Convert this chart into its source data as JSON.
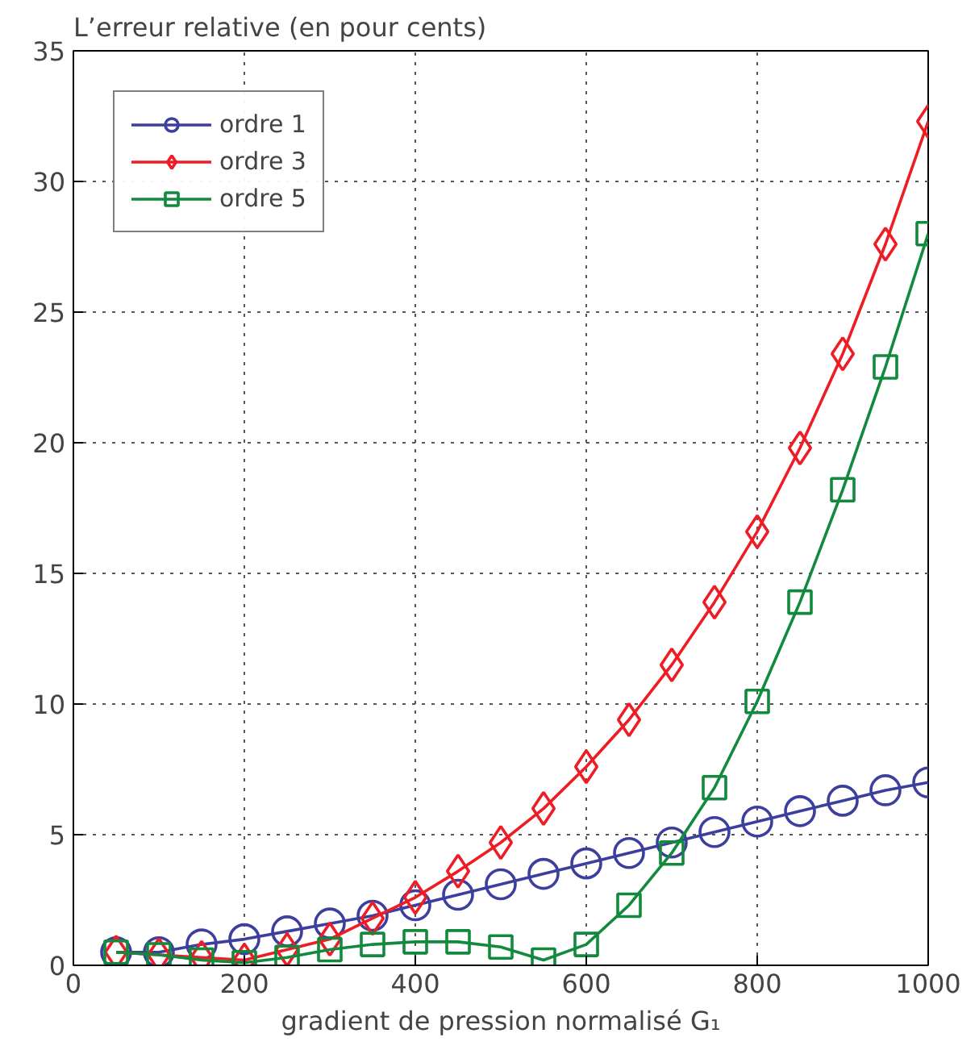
{
  "chart_data": {
    "type": "line",
    "title": "L’erreur relative  (en pour cents)",
    "xlabel": "gradient de pression normalisé G₁",
    "x": [
      50,
      100,
      150,
      200,
      250,
      300,
      350,
      400,
      450,
      500,
      550,
      600,
      650,
      700,
      750,
      800,
      850,
      900,
      950,
      1000
    ],
    "series": [
      {
        "name": "ordre 1",
        "color": "#3c3f9e",
        "marker": "circle",
        "values": [
          0.5,
          0.5,
          0.8,
          1.0,
          1.3,
          1.6,
          1.9,
          2.3,
          2.7,
          3.1,
          3.5,
          3.9,
          4.3,
          4.7,
          5.1,
          5.5,
          5.9,
          6.3,
          6.7,
          7.0
        ]
      },
      {
        "name": "ordre 3",
        "color": "#ee1c24",
        "marker": "diamond",
        "values": [
          0.5,
          0.4,
          0.3,
          0.2,
          0.6,
          1.0,
          1.8,
          2.6,
          3.6,
          4.7,
          6.0,
          7.6,
          9.4,
          11.5,
          13.9,
          16.6,
          19.8,
          23.4,
          27.6,
          32.3
        ]
      },
      {
        "name": "ordre 5",
        "color": "#128a3e",
        "marker": "square",
        "values": [
          0.5,
          0.4,
          0.2,
          0.1,
          0.3,
          0.6,
          0.8,
          0.9,
          0.9,
          0.7,
          0.2,
          0.8,
          2.3,
          4.3,
          6.8,
          10.1,
          13.9,
          18.2,
          22.9,
          28.0
        ]
      }
    ],
    "xlim": [
      0,
      1000
    ],
    "ylim": [
      0,
      35
    ],
    "xticks": [
      0,
      200,
      400,
      600,
      800,
      1000
    ],
    "yticks": [
      0,
      5,
      10,
      15,
      20,
      25,
      30,
      35
    ],
    "grid": true,
    "legend": "top left",
    "line_style": "solid"
  }
}
